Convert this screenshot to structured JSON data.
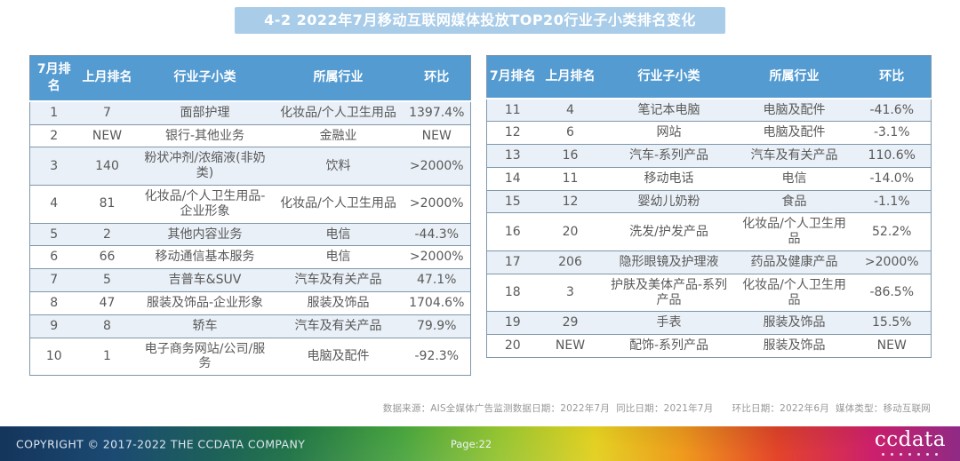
{
  "title": "4-2 2022年7月移动互联网媒体投放TOP20行业子小类排名变化",
  "columns": [
    "7月排名",
    "上月排名",
    "行业子小类",
    "所属行业",
    "环比"
  ],
  "left_table": {
    "rows": [
      [
        "1",
        "7",
        "面部护理",
        "化妆品/个人卫生用品",
        "1397.4%"
      ],
      [
        "2",
        "NEW",
        "银行-其他业务",
        "金融业",
        "NEW"
      ],
      [
        "3",
        "140",
        "粉状冲剂/浓缩液(非奶类)",
        "饮料",
        ">2000%"
      ],
      [
        "4",
        "81",
        "化妆品/个人卫生用品-企业形象",
        "化妆品/个人卫生用品",
        ">2000%"
      ],
      [
        "5",
        "2",
        "其他内容业务",
        "电信",
        "-44.3%"
      ],
      [
        "6",
        "66",
        "移动通信基本服务",
        "电信",
        ">2000%"
      ],
      [
        "7",
        "5",
        "吉普车&SUV",
        "汽车及有关产品",
        "47.1%"
      ],
      [
        "8",
        "47",
        "服装及饰品-企业形象",
        "服装及饰品",
        "1704.6%"
      ],
      [
        "9",
        "8",
        "轿车",
        "汽车及有关产品",
        "79.9%"
      ],
      [
        "10",
        "1",
        "电子商务网站/公司/服务",
        "电脑及配件",
        "-92.3%"
      ]
    ]
  },
  "right_table": {
    "rows": [
      [
        "11",
        "4",
        "笔记本电脑",
        "电脑及配件",
        "-41.6%"
      ],
      [
        "12",
        "6",
        "网站",
        "电脑及配件",
        "-3.1%"
      ],
      [
        "13",
        "16",
        "汽车-系列产品",
        "汽车及有关产品",
        "110.6%"
      ],
      [
        "14",
        "11",
        "移动电话",
        "电信",
        "-14.0%"
      ],
      [
        "15",
        "12",
        "婴幼儿奶粉",
        "食品",
        "-1.1%"
      ],
      [
        "16",
        "20",
        "洗发/护发产品",
        "化妆品/个人卫生用品",
        "52.2%"
      ],
      [
        "17",
        "206",
        "隐形眼镜及护理液",
        "药品及健康产品",
        ">2000%"
      ],
      [
        "18",
        "3",
        "护肤及美体产品-系列产品",
        "化妆品/个人卫生用品",
        "-86.5%"
      ],
      [
        "19",
        "29",
        "手表",
        "服装及饰品",
        "15.5%"
      ],
      [
        "20",
        "NEW",
        "配饰-系列产品",
        "服装及饰品",
        "NEW"
      ]
    ]
  },
  "footnote": "数据来源：AIS全媒体广告监测数据日期：2022年7月  同比日期：2021年7月      环比日期：2022年6月  媒体类型：移动互联网",
  "footer": {
    "copyright": "COPYRIGHT © 2017-2022 THE CCDATA COMPANY",
    "page_label": "Page:22",
    "logo_text": "ccdata"
  },
  "colors": {
    "header_bg": "#549bd2",
    "banner_bg": "#a9cce9",
    "row_alt_bg": "#e9f0f7",
    "row_border": "#7f97ac",
    "cell_text": "#595959",
    "note_text": "#979797"
  }
}
